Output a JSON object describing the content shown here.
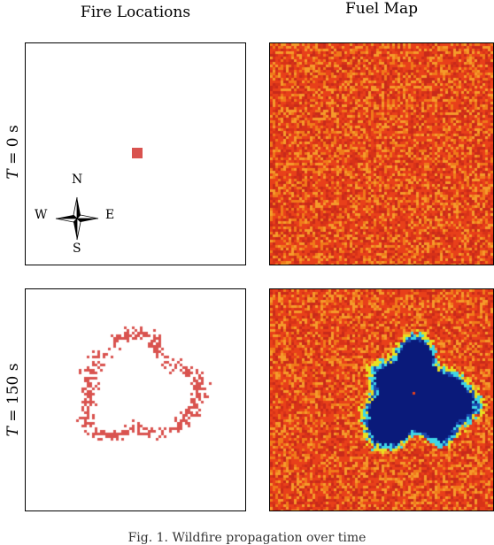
{
  "columns": {
    "fire_title": "Fire Locations",
    "fuel_title": "Fuel Map"
  },
  "rows": [
    {
      "label_var": "T",
      "label_rest": " = 0 s"
    },
    {
      "label_var": "T",
      "label_rest": " = 150 s"
    }
  ],
  "compass": {
    "north": "N",
    "south": "S",
    "east": "E",
    "west": "W"
  },
  "caption": "Fig. 1.   Wildfire propagation over time",
  "colors": {
    "fire": "#d9534f",
    "fuel_high": "#e8401a",
    "fuel_mid": "#f07a1a",
    "fuel_low": "#c92a1a",
    "burned": "#0a1a7a",
    "edge_cyan": "#3fd6e6",
    "edge_yellow": "#e8e020"
  }
}
